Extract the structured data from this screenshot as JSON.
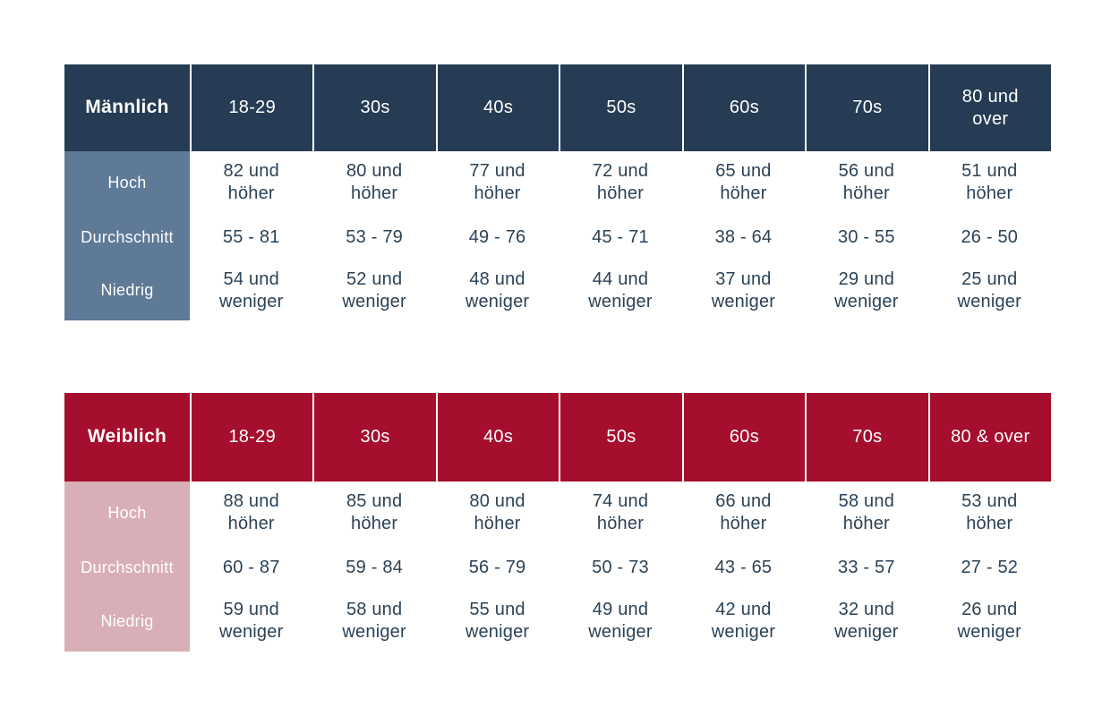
{
  "colors": {
    "male_header_bg": "#253C54",
    "male_label_bg": "#5E7A96",
    "female_header_bg": "#A50E2D",
    "female_label_bg": "#D9AFB7",
    "data_text": "#2B4257",
    "header_text": "#FFFFFF",
    "page_bg": "#FFFFFF"
  },
  "tables": [
    {
      "title": "Männlich",
      "columns": [
        "18-29",
        "30s",
        "40s",
        "50s",
        "60s",
        "70s",
        "80 und\nover"
      ],
      "rows": [
        {
          "label": "Hoch",
          "values": [
            "82 und\nhöher",
            "80 und\nhöher",
            "77 und\nhöher",
            "72 und\nhöher",
            "65 und\nhöher",
            "56 und\nhöher",
            "51 und\nhöher"
          ]
        },
        {
          "label": "Durchschnitt",
          "values": [
            "55 - 81",
            "53 - 79",
            "49 - 76",
            "45 - 71",
            "38 - 64",
            "30 - 55",
            "26 - 50"
          ]
        },
        {
          "label": "Niedrig",
          "values": [
            "54 und\nweniger",
            "52 und\nweniger",
            "48 und\nweniger",
            "44 und\nweniger",
            "37 und\nweniger",
            "29 und\nweniger",
            "25 und\nweniger"
          ]
        }
      ]
    },
    {
      "title": "Weiblich",
      "columns": [
        "18-29",
        "30s",
        "40s",
        "50s",
        "60s",
        "70s",
        "80 & over"
      ],
      "rows": [
        {
          "label": "Hoch",
          "values": [
            "88 und\nhöher",
            "85 und\nhöher",
            "80 und\nhöher",
            "74 und\nhöher",
            "66 und\nhöher",
            "58 und\nhöher",
            "53 und\nhöher"
          ]
        },
        {
          "label": "Durchschnitt",
          "values": [
            "60 - 87",
            "59 - 84",
            "56 - 79",
            "50 - 73",
            "43 - 65",
            "33 - 57",
            "27 - 52"
          ]
        },
        {
          "label": "Niedrig",
          "values": [
            "59 und\nweniger",
            "58 und\nweniger",
            "55 und\nweniger",
            "49 und\nweniger",
            "42 und\nweniger",
            "32 und\nweniger",
            "26 und\nweniger"
          ]
        }
      ]
    }
  ],
  "chart_data": [
    {
      "type": "table",
      "title": "Männlich",
      "columns": [
        "18-29",
        "30s",
        "40s",
        "50s",
        "60s",
        "70s",
        "80 und over"
      ],
      "rows": [
        {
          "label": "Hoch",
          "values": [
            "82 und höher",
            "80 und höher",
            "77 und höher",
            "72 und höher",
            "65 und höher",
            "56 und höher",
            "51 und höher"
          ]
        },
        {
          "label": "Durchschnitt",
          "values": [
            "55 - 81",
            "53 - 79",
            "49 - 76",
            "45 - 71",
            "38 - 64",
            "30 - 55",
            "26 - 50"
          ]
        },
        {
          "label": "Niedrig",
          "values": [
            "54 und weniger",
            "52 und weniger",
            "48 und weniger",
            "44 und weniger",
            "37 und weniger",
            "29 und weniger",
            "25 und weniger"
          ]
        }
      ]
    },
    {
      "type": "table",
      "title": "Weiblich",
      "columns": [
        "18-29",
        "30s",
        "40s",
        "50s",
        "60s",
        "70s",
        "80 & over"
      ],
      "rows": [
        {
          "label": "Hoch",
          "values": [
            "88 und höher",
            "85 und höher",
            "80 und höher",
            "74 und höher",
            "66 und höher",
            "58 und höher",
            "53 und höher"
          ]
        },
        {
          "label": "Durchschnitt",
          "values": [
            "60 - 87",
            "59 - 84",
            "56 - 79",
            "50 - 73",
            "43 - 65",
            "33 - 57",
            "27 - 52"
          ]
        },
        {
          "label": "Niedrig",
          "values": [
            "59 und weniger",
            "58 und weniger",
            "55 und weniger",
            "49 und weniger",
            "42 und weniger",
            "32 und weniger",
            "26 und weniger"
          ]
        }
      ]
    }
  ]
}
